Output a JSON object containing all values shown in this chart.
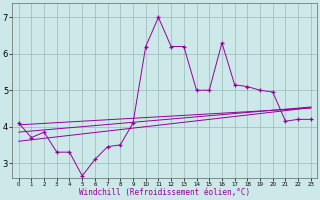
{
  "xlabel": "Windchill (Refroidissement éolien,°C)",
  "x_values": [
    0,
    1,
    2,
    3,
    4,
    5,
    6,
    7,
    8,
    9,
    10,
    11,
    12,
    13,
    14,
    15,
    16,
    17,
    18,
    19,
    20,
    21,
    22,
    23
  ],
  "main_line": [
    4.1,
    3.7,
    3.85,
    3.3,
    3.3,
    2.65,
    3.1,
    3.45,
    3.5,
    4.1,
    6.2,
    7.0,
    6.2,
    6.2,
    5.0,
    5.0,
    6.3,
    5.15,
    5.1,
    5.0,
    4.95,
    4.15,
    4.2,
    4.2
  ],
  "reg_line1": [
    4.05,
    4.07,
    4.09,
    4.11,
    4.13,
    4.15,
    4.17,
    4.19,
    4.21,
    4.23,
    4.25,
    4.27,
    4.29,
    4.31,
    4.33,
    4.35,
    4.37,
    4.39,
    4.41,
    4.43,
    4.45,
    4.47,
    4.49,
    4.51
  ],
  "reg_line2": [
    3.85,
    3.88,
    3.91,
    3.94,
    3.97,
    4.0,
    4.03,
    4.06,
    4.09,
    4.12,
    4.15,
    4.18,
    4.21,
    4.24,
    4.27,
    4.3,
    4.33,
    4.36,
    4.39,
    4.42,
    4.45,
    4.48,
    4.51,
    4.54
  ],
  "reg_line3": [
    3.6,
    3.64,
    3.68,
    3.72,
    3.76,
    3.8,
    3.84,
    3.88,
    3.92,
    3.96,
    4.0,
    4.04,
    4.08,
    4.12,
    4.16,
    4.2,
    4.24,
    4.28,
    4.32,
    4.36,
    4.4,
    4.44,
    4.48,
    4.52
  ],
  "line_color": "#990099",
  "bg_color": "#cce8e8",
  "grid_color": "#99bbbb",
  "ylim": [
    2.6,
    7.4
  ],
  "yticks": [
    3,
    4,
    5,
    6,
    7
  ],
  "xlim": [
    -0.5,
    23.5
  ]
}
